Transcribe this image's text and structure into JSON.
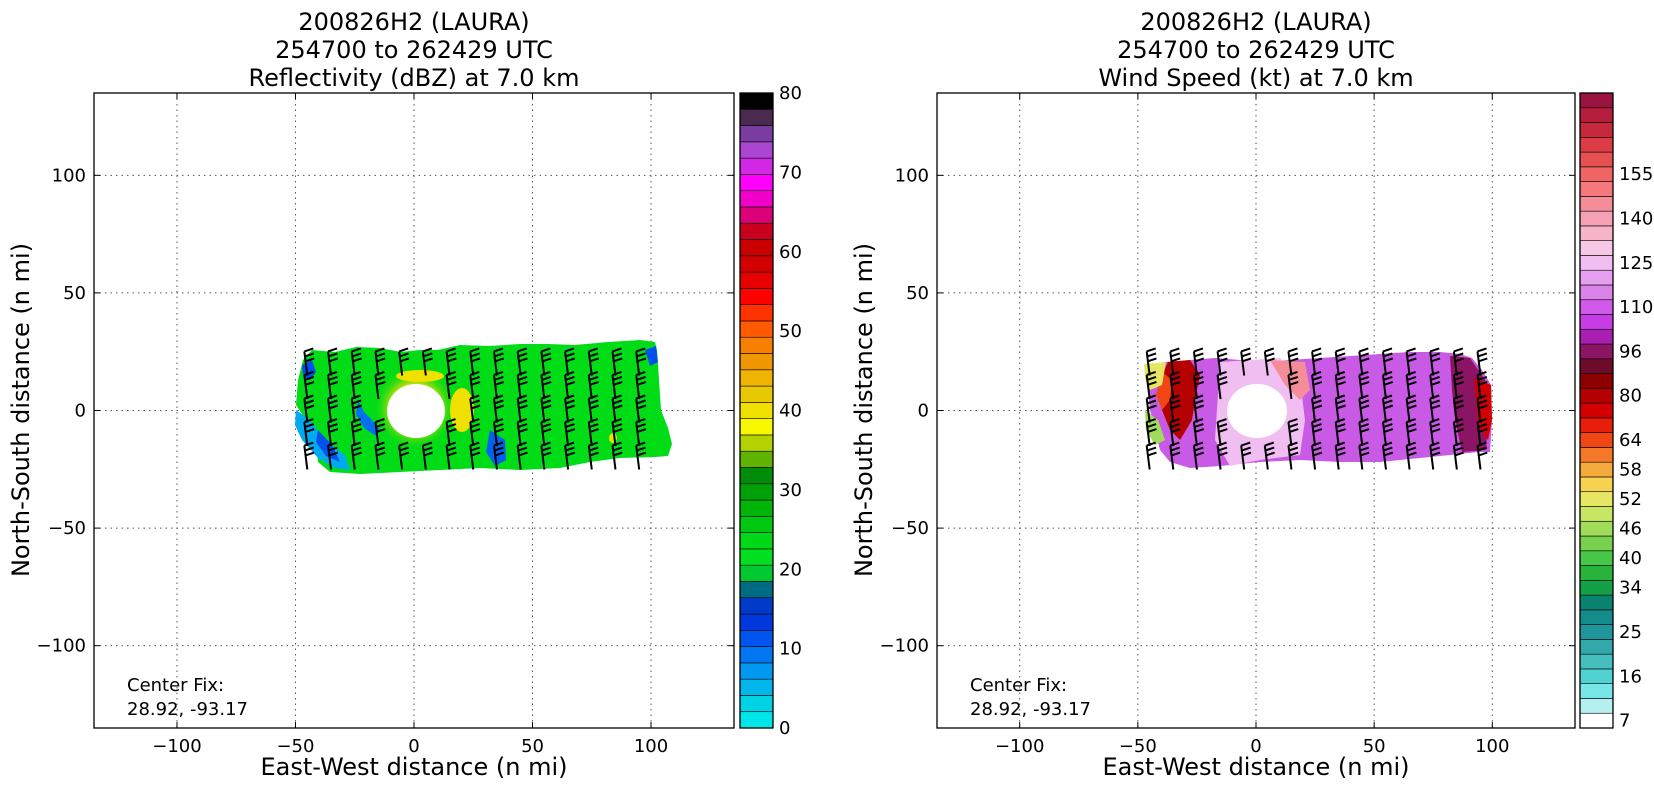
{
  "chart_data": [
    {
      "type": "heatmap",
      "title_lines": [
        "200826H2 (LAURA)",
        "254700 to 262429 UTC",
        "Reflectivity (dBZ) at 7.0 km"
      ],
      "xlabel": "East-West distance (n mi)",
      "ylabel": "North-South distance (n mi)",
      "xlim": [
        -135,
        135
      ],
      "ylim": [
        -135,
        135
      ],
      "x_ticks": [
        -100,
        -50,
        0,
        50,
        100
      ],
      "y_ticks": [
        -100,
        -50,
        0,
        50,
        100
      ],
      "x_tick_labels": [
        "−100",
        "−50",
        "0",
        "50",
        "100"
      ],
      "y_tick_labels": [
        "−100",
        "−50",
        "0",
        "50",
        "100"
      ],
      "grid": "dotted",
      "annotation_lines": [
        "Center Fix:",
        "28.92, -93.17"
      ],
      "colorbar": {
        "tick_values": [
          0,
          10,
          20,
          30,
          40,
          50,
          60,
          70,
          80
        ],
        "tick_labels": [
          "0",
          "10",
          "20",
          "30",
          "40",
          "50",
          "60",
          "70",
          "80"
        ],
        "colors": [
          "#00e5e8",
          "#00d2e6",
          "#00b6ea",
          "#0098f0",
          "#0076f2",
          "#0055ee",
          "#0038de",
          "#003ac8",
          "#006b84",
          "#00c830",
          "#00e020",
          "#00d818",
          "#00c810",
          "#00b408",
          "#00a008",
          "#008c08",
          "#60b400",
          "#b4d200",
          "#f8f800",
          "#f0e000",
          "#e8c800",
          "#f0b400",
          "#f09600",
          "#f88000",
          "#ff5a00",
          "#ff3200",
          "#ff0000",
          "#e60000",
          "#d20000",
          "#c80000",
          "#c8001e",
          "#dc0078",
          "#f000c8",
          "#ff00ff",
          "#d228e6",
          "#aa46d2",
          "#7a3ca0",
          "#4b2a50",
          "#000000"
        ],
        "orientation": "vertical"
      },
      "field_description": "Reflectivity band from about -50 to 110 n mi east-west and -25 to 30 n mi north-south around an eye at 0,0",
      "wind_barb_rows_y": [
        20,
        10,
        0,
        -10,
        -20
      ],
      "wind_barb_columns_x": [
        -45,
        -35,
        -25,
        -15,
        -5,
        5,
        15,
        25,
        35,
        45,
        55,
        65,
        75,
        85,
        95
      ]
    },
    {
      "type": "heatmap",
      "title_lines": [
        "200826H2 (LAURA)",
        "254700 to 262429 UTC",
        "Wind Speed (kt) at 7.0 km"
      ],
      "xlabel": "East-West distance (n mi)",
      "ylabel": "North-South distance (n mi)",
      "xlim": [
        -135,
        135
      ],
      "ylim": [
        -135,
        135
      ],
      "x_ticks": [
        -100,
        -50,
        0,
        50,
        100
      ],
      "y_ticks": [
        -100,
        -50,
        0,
        50,
        100
      ],
      "x_tick_labels": [
        "−100",
        "−50",
        "0",
        "50",
        "100"
      ],
      "y_tick_labels": [
        "−100",
        "−50",
        "0",
        "50",
        "100"
      ],
      "grid": "dotted",
      "annotation_lines": [
        "Center Fix:",
        "28.92, -93.17"
      ],
      "colorbar": {
        "tick_labels": [
          "7",
          "16",
          "25",
          "34",
          "40",
          "46",
          "52",
          "58",
          "64",
          "80",
          "96",
          "110",
          "125",
          "140",
          "155"
        ],
        "tick_boundary_index": [
          0,
          3,
          6,
          9,
          11,
          13,
          15,
          17,
          19,
          22,
          25,
          28,
          31,
          34,
          37
        ],
        "colors": [
          "#ffffff",
          "#b4f0f0",
          "#78e6e6",
          "#50d2d2",
          "#46bebe",
          "#32a8aa",
          "#1e969a",
          "#148c8c",
          "#0a8270",
          "#14a046",
          "#28b43c",
          "#46c846",
          "#78d250",
          "#a0dc5a",
          "#c8e664",
          "#e6e664",
          "#f5d250",
          "#f5aa3c",
          "#f57828",
          "#f04614",
          "#e61e0a",
          "#d20000",
          "#b40000",
          "#8c0000",
          "#6e0a2a",
          "#8c1464",
          "#aa1eb4",
          "#c83ce6",
          "#d25aeb",
          "#dc82eb",
          "#e6a0f0",
          "#f0bef0",
          "#f5c8e6",
          "#f5b4c8",
          "#f5a0b4",
          "#f58c9a",
          "#f5787d",
          "#f06464",
          "#e65050",
          "#dc3c46",
          "#c8283c",
          "#b41e3c",
          "#9b1440"
        ],
        "orientation": "vertical"
      },
      "field_description": "Wind speed band from about -50 to 100 n mi east-west and -25 to 25 n mi north-south around an eye at 0,0; maxima near the eastern edge",
      "wind_barb_rows_y": [
        20,
        10,
        0,
        -10,
        -20
      ],
      "wind_barb_columns_x": [
        -45,
        -35,
        -25,
        -15,
        -5,
        5,
        15,
        25,
        35,
        45,
        55,
        65,
        75,
        85,
        95
      ]
    }
  ]
}
